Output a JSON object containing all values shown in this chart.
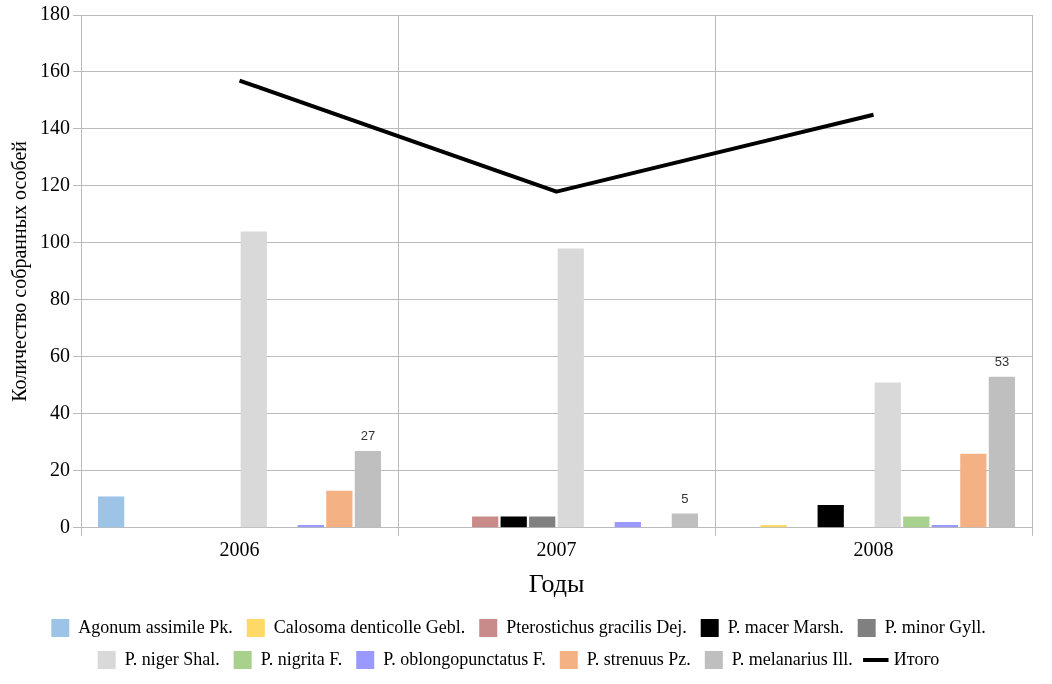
{
  "chart_data": {
    "type": "bar",
    "xlabel": "Годы",
    "ylabel": "Количество собранных особей",
    "categories": [
      "2006",
      "2007",
      "2008"
    ],
    "series": [
      {
        "name": "Agonum assimile Pk.",
        "color": "#9dc3e6",
        "values": [
          11,
          0,
          0
        ]
      },
      {
        "name": "Calosoma denticolle Gebl.",
        "color": "#ffd966",
        "values": [
          0,
          0,
          1
        ]
      },
      {
        "name": "Pterostichus gracilis Dej.",
        "color": "#c98a8a",
        "values": [
          0,
          4,
          0
        ]
      },
      {
        "name": "P. macer Marsh.",
        "color": "#000000",
        "values": [
          0,
          4,
          8
        ]
      },
      {
        "name": "P. minor Gyll.",
        "color": "#808080",
        "values": [
          0,
          4,
          0
        ]
      },
      {
        "name": "P. niger Shal.",
        "color": "#d9d9d9",
        "values": [
          104,
          98,
          51
        ]
      },
      {
        "name": "P. nigrita F.",
        "color": "#a9d18e",
        "values": [
          0,
          0,
          4
        ]
      },
      {
        "name": "P. oblongopunctatus F.",
        "color": "#9999ff",
        "values": [
          1,
          2,
          1
        ]
      },
      {
        "name": "P. strenuus Pz.",
        "color": "#f4b183",
        "values": [
          13,
          0,
          26
        ]
      },
      {
        "name": "P. melanarius Ill.",
        "color": "#bfbfbf",
        "values": [
          27,
          5,
          53
        ],
        "value_labels": [
          "27",
          "5",
          "53"
        ]
      },
      {
        "name": "Итого",
        "type": "line",
        "color": "#000000",
        "values": [
          157,
          118,
          145
        ]
      }
    ],
    "ylim": [
      0,
      180
    ],
    "yticks": [
      0,
      20,
      40,
      60,
      80,
      100,
      120,
      140,
      160,
      180
    ],
    "grid": true,
    "legend": "bottom",
    "marker": "none",
    "line_style": "solid"
  }
}
